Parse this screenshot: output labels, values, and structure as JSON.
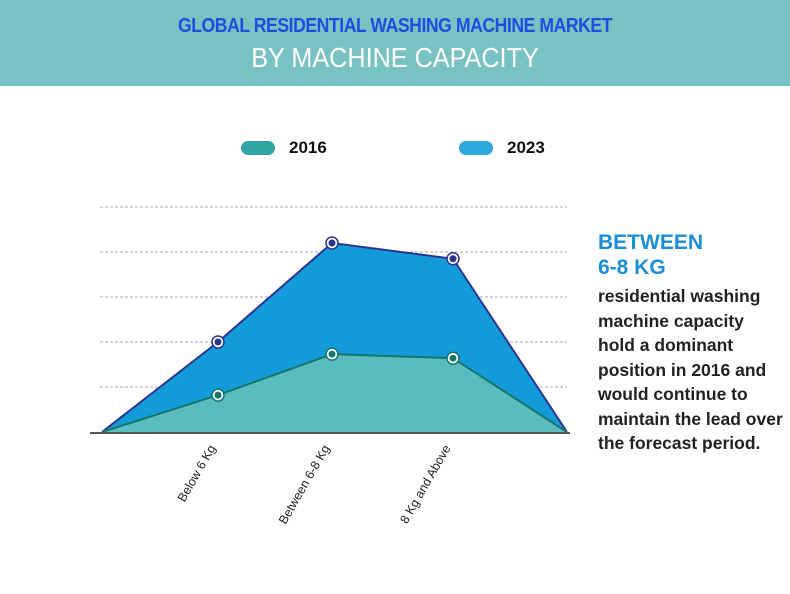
{
  "header": {
    "title": "GLOBAL RESIDENTIAL WASHING MACHINE MARKET",
    "subtitle": "BY MACHINE CAPACITY"
  },
  "chart_data": {
    "type": "area",
    "title": "GLOBAL RESIDENTIAL WASHING MACHINE MARKET BY MACHINE CAPACITY",
    "categories": [
      "Below 6 Kg",
      "Between 6-8 Kg",
      "8 Kg and Above"
    ],
    "series": [
      {
        "name": "2016",
        "values": [
          0.82,
          1.73,
          1.64
        ],
        "color": "#5bbcbf",
        "line": "#17766b",
        "legend_color": "#33a4a4"
      },
      {
        "name": "2023",
        "values": [
          2.0,
          4.2,
          3.85
        ],
        "color": "#129bd8",
        "line": "#2a3590",
        "legend_color": "#2ea7dc"
      }
    ],
    "ylim": [
      0,
      5
    ],
    "y_ticks_labeled": false,
    "grid": true,
    "legend_position": "top"
  },
  "side_note": {
    "heading_line1": "BETWEEN",
    "heading_line2": "6-8 KG",
    "body": "residential washing machine capacity hold a dominant position in 2016 and would continue to maintain the lead over the forecast period."
  }
}
